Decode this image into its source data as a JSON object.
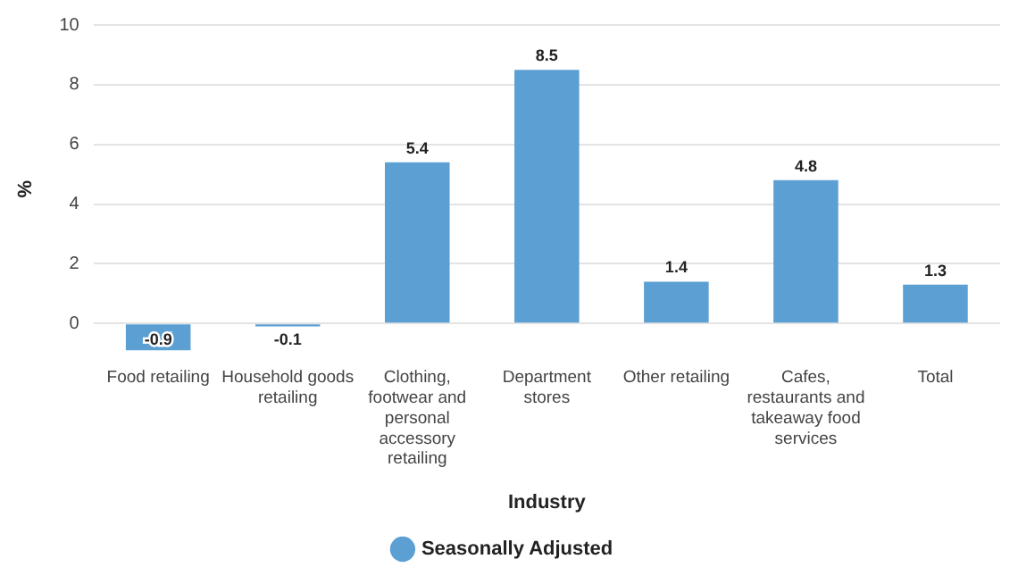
{
  "chart_data": {
    "type": "bar",
    "xlabel": "Industry",
    "ylabel": "%",
    "categories": [
      "Food retailing",
      "Household goods retailing",
      "Clothing, footwear and personal accessory retailing",
      "Department stores",
      "Other retailing",
      "Cafes, restaurants and takeaway food services",
      "Total"
    ],
    "series": [
      {
        "name": "Seasonally Adjusted",
        "color": "#5b9fd3",
        "values": [
          -0.9,
          -0.1,
          5.4,
          8.5,
          1.4,
          4.8,
          1.3
        ]
      }
    ],
    "ylim": [
      -1,
      10
    ],
    "yticks": [
      0,
      2,
      4,
      6,
      8,
      10
    ],
    "grid": "y",
    "legend": "bottom",
    "data_labels": true
  }
}
